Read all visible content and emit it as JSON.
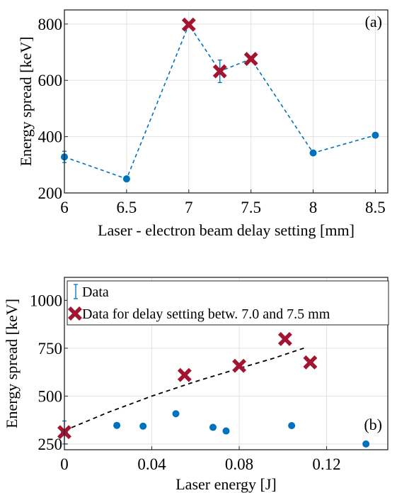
{
  "colors": {
    "data_blue": "#0072BD",
    "delay_red": "#A2142F",
    "fit_line": "#000000",
    "grid": "#e3e3e3"
  },
  "chart_data": [
    {
      "type": "scatter",
      "panel_label": "(a)",
      "xlabel": "Laser - electron beam delay setting [mm]",
      "ylabel": "Energy spread [keV]",
      "xlim": [
        6,
        8.6
      ],
      "ylim": [
        200,
        850
      ],
      "xticks": [
        6,
        6.5,
        7,
        7.5,
        8,
        8.5
      ],
      "xtick_labels": [
        "6",
        "6.5",
        "7",
        "7.5",
        "8",
        "8.5"
      ],
      "yticks": [
        200,
        400,
        600,
        800
      ],
      "ytick_labels": [
        "200",
        "400",
        "600",
        "800"
      ],
      "grid": true,
      "connecting_line": "dashed",
      "series": [
        {
          "marker": "circle",
          "points": [
            {
              "x": 6.0,
              "y": 328,
              "err": 20
            },
            {
              "x": 6.5,
              "y": 250,
              "err": 0
            },
            {
              "x": 8.0,
              "y": 342,
              "err": 0
            },
            {
              "x": 8.5,
              "y": 405,
              "err": 0
            }
          ]
        },
        {
          "marker": "cross",
          "points": [
            {
              "x": 7.0,
              "y": 798,
              "err": 0
            },
            {
              "x": 7.25,
              "y": 632,
              "err": 40
            },
            {
              "x": 7.5,
              "y": 676,
              "err": 0
            }
          ]
        }
      ],
      "line_order_x": [
        6.0,
        6.5,
        7.0,
        7.25,
        7.5,
        8.0,
        8.5
      ]
    },
    {
      "type": "scatter",
      "panel_label": "(b)",
      "xlabel": "Laser energy [J]",
      "ylabel": "Energy spread [keV]",
      "xlim": [
        0,
        0.148
      ],
      "ylim": [
        220,
        1120
      ],
      "xticks": [
        0,
        0.04,
        0.08,
        0.12
      ],
      "xtick_labels": [
        "0",
        "0.04",
        "0.08",
        "0.12"
      ],
      "yticks": [
        250,
        500,
        750,
        1000
      ],
      "ytick_labels": [
        "250",
        "500",
        "750",
        "1000"
      ],
      "grid": true,
      "legend_position": "top-left",
      "series": [
        {
          "name": "Data",
          "marker": "circle",
          "points": [
            {
              "x": 0.0,
              "y": 310,
              "err": 60
            },
            {
              "x": 0.024,
              "y": 347,
              "err": 0
            },
            {
              "x": 0.036,
              "y": 343,
              "err": 0
            },
            {
              "x": 0.051,
              "y": 408,
              "err": 0
            },
            {
              "x": 0.068,
              "y": 337,
              "err": 0
            },
            {
              "x": 0.074,
              "y": 318,
              "err": 0
            },
            {
              "x": 0.104,
              "y": 346,
              "err": 0
            },
            {
              "x": 0.138,
              "y": 250,
              "err": 0
            }
          ]
        },
        {
          "name": "Data for delay setting betw. 7.0 and 7.5 mm",
          "marker": "cross",
          "points": [
            {
              "x": 0.0,
              "y": 312,
              "err": 0
            },
            {
              "x": 0.055,
              "y": 610,
              "err": 0
            },
            {
              "x": 0.08,
              "y": 658,
              "err": 0
            },
            {
              "x": 0.101,
              "y": 798,
              "err": 0
            },
            {
              "x": 0.1125,
              "y": 676,
              "err": 0
            }
          ]
        }
      ],
      "fit_line": {
        "style": "dashed",
        "points": [
          [
            0.0,
            320
          ],
          [
            0.02,
            415
          ],
          [
            0.04,
            500
          ],
          [
            0.06,
            576
          ],
          [
            0.08,
            645
          ],
          [
            0.095,
            695
          ],
          [
            0.11,
            752
          ]
        ]
      }
    }
  ]
}
